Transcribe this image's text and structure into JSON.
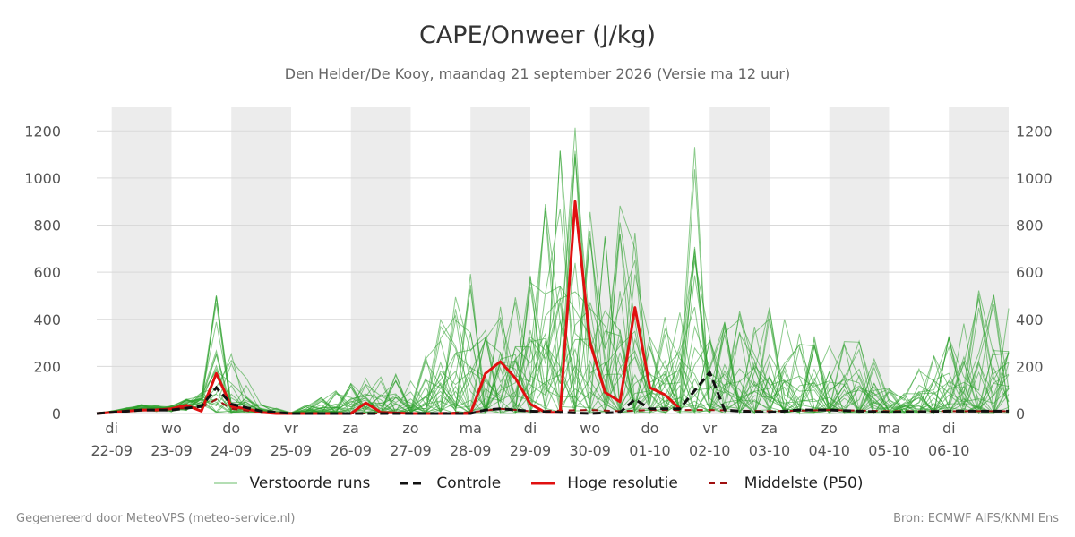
{
  "title": "CAPE/Onweer (J/kg)",
  "subtitle": "Den Helder/De Kooy, maandag 21 september 2026 (Versie ma 12 uur)",
  "footer": {
    "left": "Gegenereerd door MeteoVPS (meteo-service.nl)",
    "right": "Bron: ECMWF AIFS/KNMI Ens"
  },
  "legend": {
    "perturbed": "Verstoorde runs",
    "control": "Controle",
    "hires": "Hoge resolutie",
    "median": "Middelste (P50)"
  },
  "colors": {
    "perturbed": "#2ca02c",
    "control": "#111111",
    "hires": "#e01010",
    "median": "#a01010",
    "weekend_band": "#ececec",
    "grid": "#d9d9d9"
  },
  "chart_data": {
    "type": "line",
    "title": "CAPE/Onweer (J/kg)",
    "ylabel": "",
    "ylim": [
      0,
      1300
    ],
    "yticks": [
      0,
      200,
      400,
      600,
      800,
      1000,
      1200
    ],
    "x_unit": "days from 21-09 00:00",
    "xlim": [
      0.75,
      16.0
    ],
    "x_ticks": [
      {
        "x": 1,
        "day": "di",
        "date": "22-09"
      },
      {
        "x": 2,
        "day": "wo",
        "date": "23-09"
      },
      {
        "x": 3,
        "day": "do",
        "date": "24-09"
      },
      {
        "x": 4,
        "day": "vr",
        "date": "25-09"
      },
      {
        "x": 5,
        "day": "za",
        "date": "26-09"
      },
      {
        "x": 6,
        "day": "zo",
        "date": "27-09"
      },
      {
        "x": 7,
        "day": "ma",
        "date": "28-09"
      },
      {
        "x": 8,
        "day": "di",
        "date": "29-09"
      },
      {
        "x": 9,
        "day": "wo",
        "date": "30-09"
      },
      {
        "x": 10,
        "day": "do",
        "date": "01-10"
      },
      {
        "x": 11,
        "day": "vr",
        "date": "02-10"
      },
      {
        "x": 12,
        "day": "za",
        "date": "03-10"
      },
      {
        "x": 13,
        "day": "zo",
        "date": "04-10"
      },
      {
        "x": 14,
        "day": "ma",
        "date": "05-10"
      },
      {
        "x": 15,
        "day": "di",
        "date": "06-10"
      }
    ],
    "shaded_bands": [
      [
        1,
        2
      ],
      [
        3,
        4
      ],
      [
        5,
        6
      ],
      [
        7,
        8
      ],
      [
        9,
        10
      ],
      [
        11,
        12
      ],
      [
        13,
        14
      ],
      [
        15,
        16
      ]
    ],
    "grid": true,
    "legend_position": "bottom",
    "series": [
      {
        "name": "Hoge resolutie",
        "style": "solid",
        "x": [
          0.75,
          1.0,
          1.25,
          1.5,
          1.75,
          2.0,
          2.25,
          2.5,
          2.75,
          3.0,
          3.25,
          3.5,
          3.75,
          4.0,
          4.5,
          5.0,
          5.25,
          5.5,
          6.0,
          6.5,
          7.0,
          7.25,
          7.5,
          7.75,
          8.0,
          8.25,
          8.5,
          8.75,
          9.0,
          9.25,
          9.5,
          9.75,
          10.0,
          10.25,
          10.5
        ],
        "y": [
          0,
          5,
          10,
          15,
          15,
          20,
          35,
          10,
          170,
          30,
          20,
          5,
          0,
          0,
          0,
          0,
          45,
          5,
          0,
          0,
          0,
          170,
          220,
          150,
          40,
          5,
          5,
          900,
          300,
          90,
          50,
          450,
          110,
          80,
          20
        ]
      },
      {
        "name": "Controle",
        "style": "dashed",
        "x": [
          0.75,
          1.5,
          2.0,
          2.5,
          2.75,
          3.0,
          3.5,
          4.0,
          6.0,
          7.0,
          7.25,
          7.5,
          8.0,
          8.5,
          9.0,
          9.5,
          9.75,
          10.0,
          10.5,
          11.0,
          11.25,
          11.5,
          12.0,
          12.5,
          13.0,
          13.5,
          14.0,
          15.0,
          16.0
        ],
        "y": [
          0,
          15,
          15,
          30,
          110,
          40,
          10,
          0,
          0,
          0,
          15,
          20,
          10,
          5,
          0,
          5,
          60,
          20,
          20,
          175,
          15,
          10,
          5,
          15,
          15,
          10,
          5,
          10,
          10
        ]
      },
      {
        "name": "Middelste (P50)",
        "style": "dashed",
        "x": [
          0.75,
          1.5,
          2.0,
          2.5,
          2.75,
          3.0,
          3.5,
          4.0,
          5.0,
          6.0,
          7.0,
          7.5,
          8.0,
          9.0,
          9.5,
          10.0,
          11.0,
          12.0,
          13.0,
          14.0,
          15.0,
          16.0
        ],
        "y": [
          0,
          15,
          20,
          25,
          60,
          20,
          5,
          0,
          0,
          0,
          5,
          20,
          10,
          15,
          10,
          15,
          15,
          10,
          15,
          10,
          10,
          10
        ]
      },
      {
        "name": "Verstoorde runs",
        "style": "solid",
        "note": "ensemble envelope (peaks)",
        "x": [
          0.75,
          1.0,
          1.5,
          2.0,
          2.5,
          2.75,
          3.0,
          3.5,
          4.0,
          5.0,
          5.25,
          6.0,
          7.0,
          7.25,
          8.0,
          8.5,
          8.75,
          9.0,
          9.5,
          9.75,
          10.0,
          10.5,
          10.75,
          11.0,
          11.5,
          12.0,
          12.5,
          13.0,
          13.5,
          14.0,
          14.5,
          15.0,
          15.5,
          16.0
        ],
        "y": [
          0,
          15,
          55,
          45,
          120,
          510,
          270,
          40,
          5,
          130,
          155,
          175,
          635,
          370,
          700,
          1150,
          1225,
          870,
          1010,
          785,
          335,
          530,
          1300,
          390,
          435,
          470,
          350,
          380,
          355,
          120,
          230,
          350,
          560,
          500
        ]
      }
    ]
  }
}
